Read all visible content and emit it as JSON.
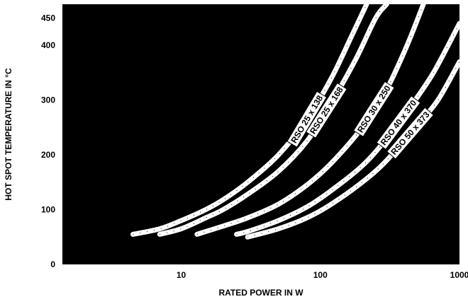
{
  "chart_data": {
    "type": "line",
    "xlabel": "RATED POWER IN W",
    "ylabel": "HOT SPOT TEMPERATURE IN °C",
    "xscale": "log",
    "xlim": [
      1.4,
      1000
    ],
    "ylim": [
      0,
      475
    ],
    "x_ticks": [
      {
        "value": 10,
        "label": "10"
      },
      {
        "value": 100,
        "label": "100"
      },
      {
        "value": 1000,
        "label": "1000"
      }
    ],
    "y_ticks": [
      {
        "value": 0,
        "label": "0"
      },
      {
        "value": 100,
        "label": "100"
      },
      {
        "value": 200,
        "label": "200"
      },
      {
        "value": 300,
        "label": "300"
      },
      {
        "value": 400,
        "label": "400"
      },
      {
        "value": 450,
        "label": "450"
      }
    ],
    "background": "#000000",
    "curve_color": "#ffffff",
    "series": [
      {
        "name": "RSO 25 x 138",
        "x": [
          4.5,
          7,
          10,
          15,
          20,
          30,
          50,
          80,
          120,
          170,
          215
        ],
        "y": [
          55,
          65,
          80,
          100,
          118,
          150,
          200,
          265,
          340,
          420,
          475
        ]
      },
      {
        "name": "RSO 25 x 168",
        "x": [
          7,
          10,
          15,
          20,
          30,
          50,
          80,
          120,
          180,
          250,
          300
        ],
        "y": [
          55,
          65,
          85,
          100,
          128,
          170,
          225,
          295,
          375,
          450,
          475
        ]
      },
      {
        "name": "RSO 30 x 250",
        "x": [
          13,
          20,
          30,
          50,
          80,
          120,
          200,
          300,
          420,
          550
        ],
        "y": [
          55,
          70,
          85,
          110,
          145,
          185,
          250,
          320,
          400,
          475
        ]
      },
      {
        "name": "RSO 40 x 370",
        "x": [
          25,
          30,
          50,
          80,
          120,
          200,
          300,
          450,
          650,
          1000
        ],
        "y": [
          55,
          60,
          80,
          105,
          135,
          180,
          230,
          290,
          350,
          440
        ]
      },
      {
        "name": "RSO 50 x 373",
        "x": [
          30,
          50,
          80,
          120,
          200,
          300,
          500,
          700,
          1000
        ],
        "y": [
          50,
          65,
          85,
          110,
          150,
          190,
          255,
          300,
          370
        ]
      }
    ]
  }
}
